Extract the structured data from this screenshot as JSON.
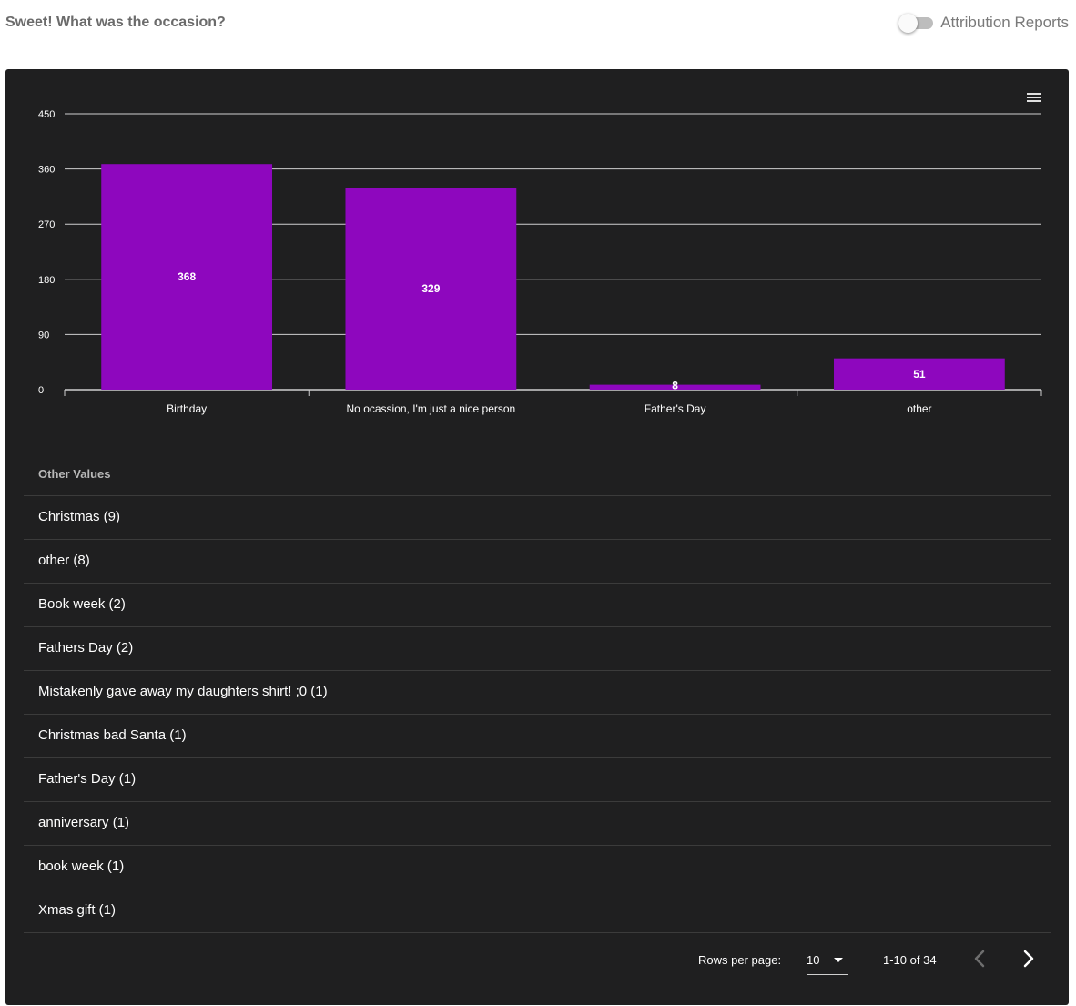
{
  "header": {
    "title": "Sweet! What was the occasion?",
    "toggle_label": "Attribution Reports"
  },
  "colors": {
    "bar": "#8e07be",
    "panel_bg": "#1f1f20",
    "grid": "#cfcfcf"
  },
  "chart_data": {
    "type": "bar",
    "categories": [
      "Birthday",
      "No ocassion, I'm just a nice person",
      "Father's Day",
      "other"
    ],
    "values": [
      368,
      329,
      8,
      51
    ],
    "yticks": [
      0,
      90,
      180,
      270,
      360,
      450
    ],
    "ylim": [
      0,
      450
    ],
    "data_labels": [
      "368",
      "329",
      "8",
      "51"
    ],
    "grid": true
  },
  "other_values": {
    "header": "Other Values",
    "items": [
      "Christmas (9)",
      "other (8)",
      "Book week (2)",
      "Fathers Day (2)",
      "Mistakenly gave away my daughters shirt! ;0 (1)",
      "Christmas bad Santa (1)",
      "Father's Day (1)",
      "anniversary (1)",
      "book week (1)",
      "Xmas gift (1)"
    ]
  },
  "pagination": {
    "rows_per_page_label": "Rows per page:",
    "rows_per_page_value": "10",
    "range_text": "1-10 of 34"
  },
  "icons": {
    "menu": "hamburger-menu-icon",
    "prev": "chevron-left-icon",
    "next": "chevron-right-icon",
    "dropdown": "caret-down-icon"
  }
}
